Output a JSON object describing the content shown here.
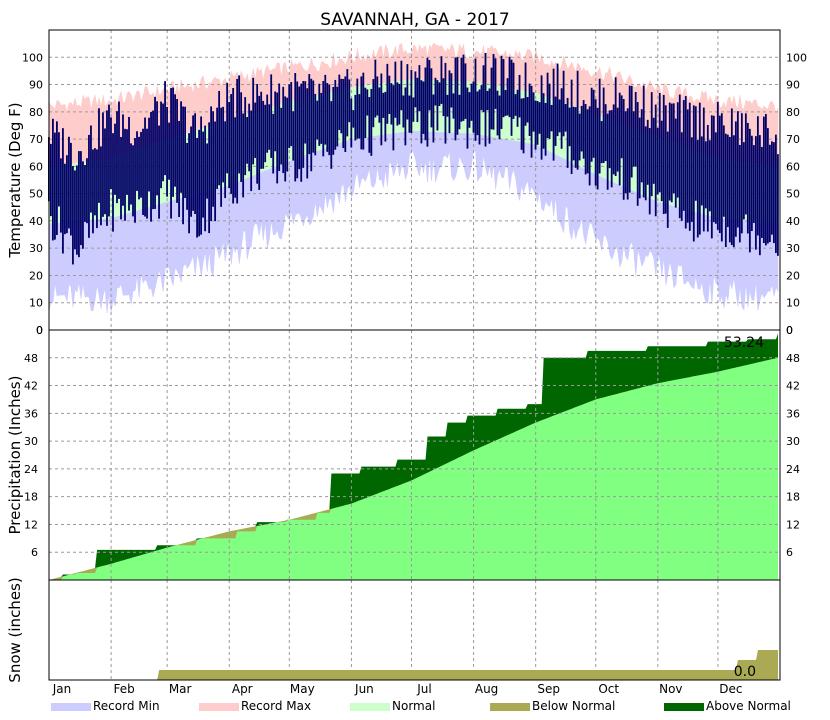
{
  "chart_data": {
    "title": "SAVANNAH, GA - 2017",
    "months": [
      "Jan",
      "Feb",
      "Mar",
      "Apr",
      "May",
      "Jun",
      "Jul",
      "Aug",
      "Sep",
      "Oct",
      "Nov",
      "Dec"
    ],
    "legend": [
      {
        "label": "Record Min",
        "color": "#ccccff"
      },
      {
        "label": "Record Max",
        "color": "#ffcccc"
      },
      {
        "label": "Normal",
        "color": "#ccffcc"
      },
      {
        "label": "Below Normal",
        "color": "#aaaa55"
      },
      {
        "label": "Above Normal",
        "color": "#006600"
      }
    ],
    "panels": [
      {
        "type": "area",
        "name": "temperature",
        "ylabel": "Temperature (Deg F)",
        "ylim": [
          0,
          110
        ],
        "yticks": [
          0,
          10,
          20,
          30,
          40,
          50,
          60,
          70,
          80,
          90,
          100
        ],
        "series": [
          {
            "name": "Record Max",
            "color": "#ffcccc",
            "x_day": [
              1,
              32,
              60,
              91,
              121,
              152,
              182,
              213,
              244,
              274,
              305,
              335,
              365
            ],
            "values": [
              82,
              84,
              88,
              92,
              96,
              100,
              103,
              102,
              100,
              95,
              88,
              84,
              82
            ]
          },
          {
            "name": "Normal High",
            "color": "#ccffcc",
            "x_day": [
              1,
              32,
              60,
              91,
              121,
              152,
              182,
              213,
              244,
              274,
              305,
              335,
              365
            ],
            "values": [
              60,
              63,
              70,
              77,
              84,
              89,
              92,
              91,
              87,
              79,
              71,
              63,
              60
            ]
          },
          {
            "name": "Normal Low",
            "color": "#ccffcc",
            "x_day": [
              1,
              32,
              60,
              91,
              121,
              152,
              182,
              213,
              244,
              274,
              305,
              335,
              365
            ],
            "values": [
              39,
              41,
              47,
              53,
              62,
              70,
              73,
              72,
              68,
              57,
              47,
              41,
              39
            ]
          },
          {
            "name": "Record Min",
            "color": "#ccccff",
            "x_day": [
              1,
              32,
              60,
              91,
              121,
              152,
              182,
              213,
              244,
              274,
              305,
              335,
              365
            ],
            "values": [
              12,
              12,
              18,
              28,
              40,
              52,
              60,
              60,
              50,
              32,
              22,
              14,
              12
            ]
          },
          {
            "name": "Observed High",
            "color": "#000066",
            "x_day": [
              1,
              15,
              32,
              46,
              60,
              75,
              91,
              105,
              121,
              136,
              152,
              167,
              182,
              197,
              213,
              228,
              244,
              258,
              274,
              289,
              305,
              320,
              335,
              350,
              365
            ],
            "values": [
              72,
              65,
              78,
              74,
              84,
              72,
              85,
              86,
              88,
              86,
              88,
              92,
              93,
              94,
              94,
              93,
              90,
              90,
              84,
              86,
              80,
              78,
              76,
              73,
              72
            ]
          },
          {
            "name": "Observed Low",
            "color": "#000066",
            "x_day": [
              1,
              15,
              32,
              46,
              60,
              75,
              91,
              105,
              121,
              136,
              152,
              167,
              182,
              197,
              213,
              228,
              244,
              258,
              274,
              289,
              305,
              320,
              335,
              350,
              365
            ],
            "values": [
              42,
              30,
              44,
              45,
              50,
              38,
              52,
              58,
              60,
              64,
              70,
              72,
              74,
              75,
              74,
              74,
              70,
              66,
              58,
              55,
              46,
              40,
              38,
              36,
              34
            ]
          }
        ]
      },
      {
        "type": "area",
        "name": "precipitation",
        "ylabel": "Precipitation (Inches)",
        "ylim": [
          0,
          54
        ],
        "yticks": [
          6,
          12,
          18,
          24,
          30,
          36,
          42,
          48
        ],
        "annotation": "53.24",
        "series": [
          {
            "name": "Normal",
            "color": "#80ff80",
            "x_day": [
              1,
              32,
              60,
              91,
              121,
              152,
              182,
              213,
              244,
              274,
              305,
              335,
              365
            ],
            "values": [
              0,
              3.5,
              7,
              10.5,
              13,
              16.5,
              21.5,
              28,
              34,
              39,
              42.5,
              45,
              48
            ]
          },
          {
            "name": "Observed",
            "color": "#006600",
            "x_day": [
              1,
              8,
              15,
              25,
              40,
              55,
              75,
              95,
              105,
              120,
              135,
              142,
              157,
              175,
              190,
              200,
              210,
              225,
              240,
              248,
              270,
              300,
              330,
              350,
              365
            ],
            "values": [
              0,
              1.2,
              1.5,
              6.5,
              6.5,
              7.5,
              9,
              10.5,
              12.5,
              13,
              14.5,
              23,
              24.5,
              26,
              31,
              34,
              35.5,
              37,
              38,
              48,
              49.5,
              50.5,
              51.5,
              52,
              53.24
            ]
          }
        ]
      },
      {
        "type": "area",
        "name": "snow",
        "ylabel": "Snow (inches)",
        "annotation": "0.0",
        "series": [
          {
            "name": "Normal",
            "color": "#aaaa55",
            "x_day": [
              1,
              55,
              56,
              340,
              345,
              355,
              365
            ],
            "values": [
              0,
              0,
              0.1,
              0.1,
              0.2,
              0.3,
              0.3
            ]
          }
        ]
      }
    ]
  }
}
